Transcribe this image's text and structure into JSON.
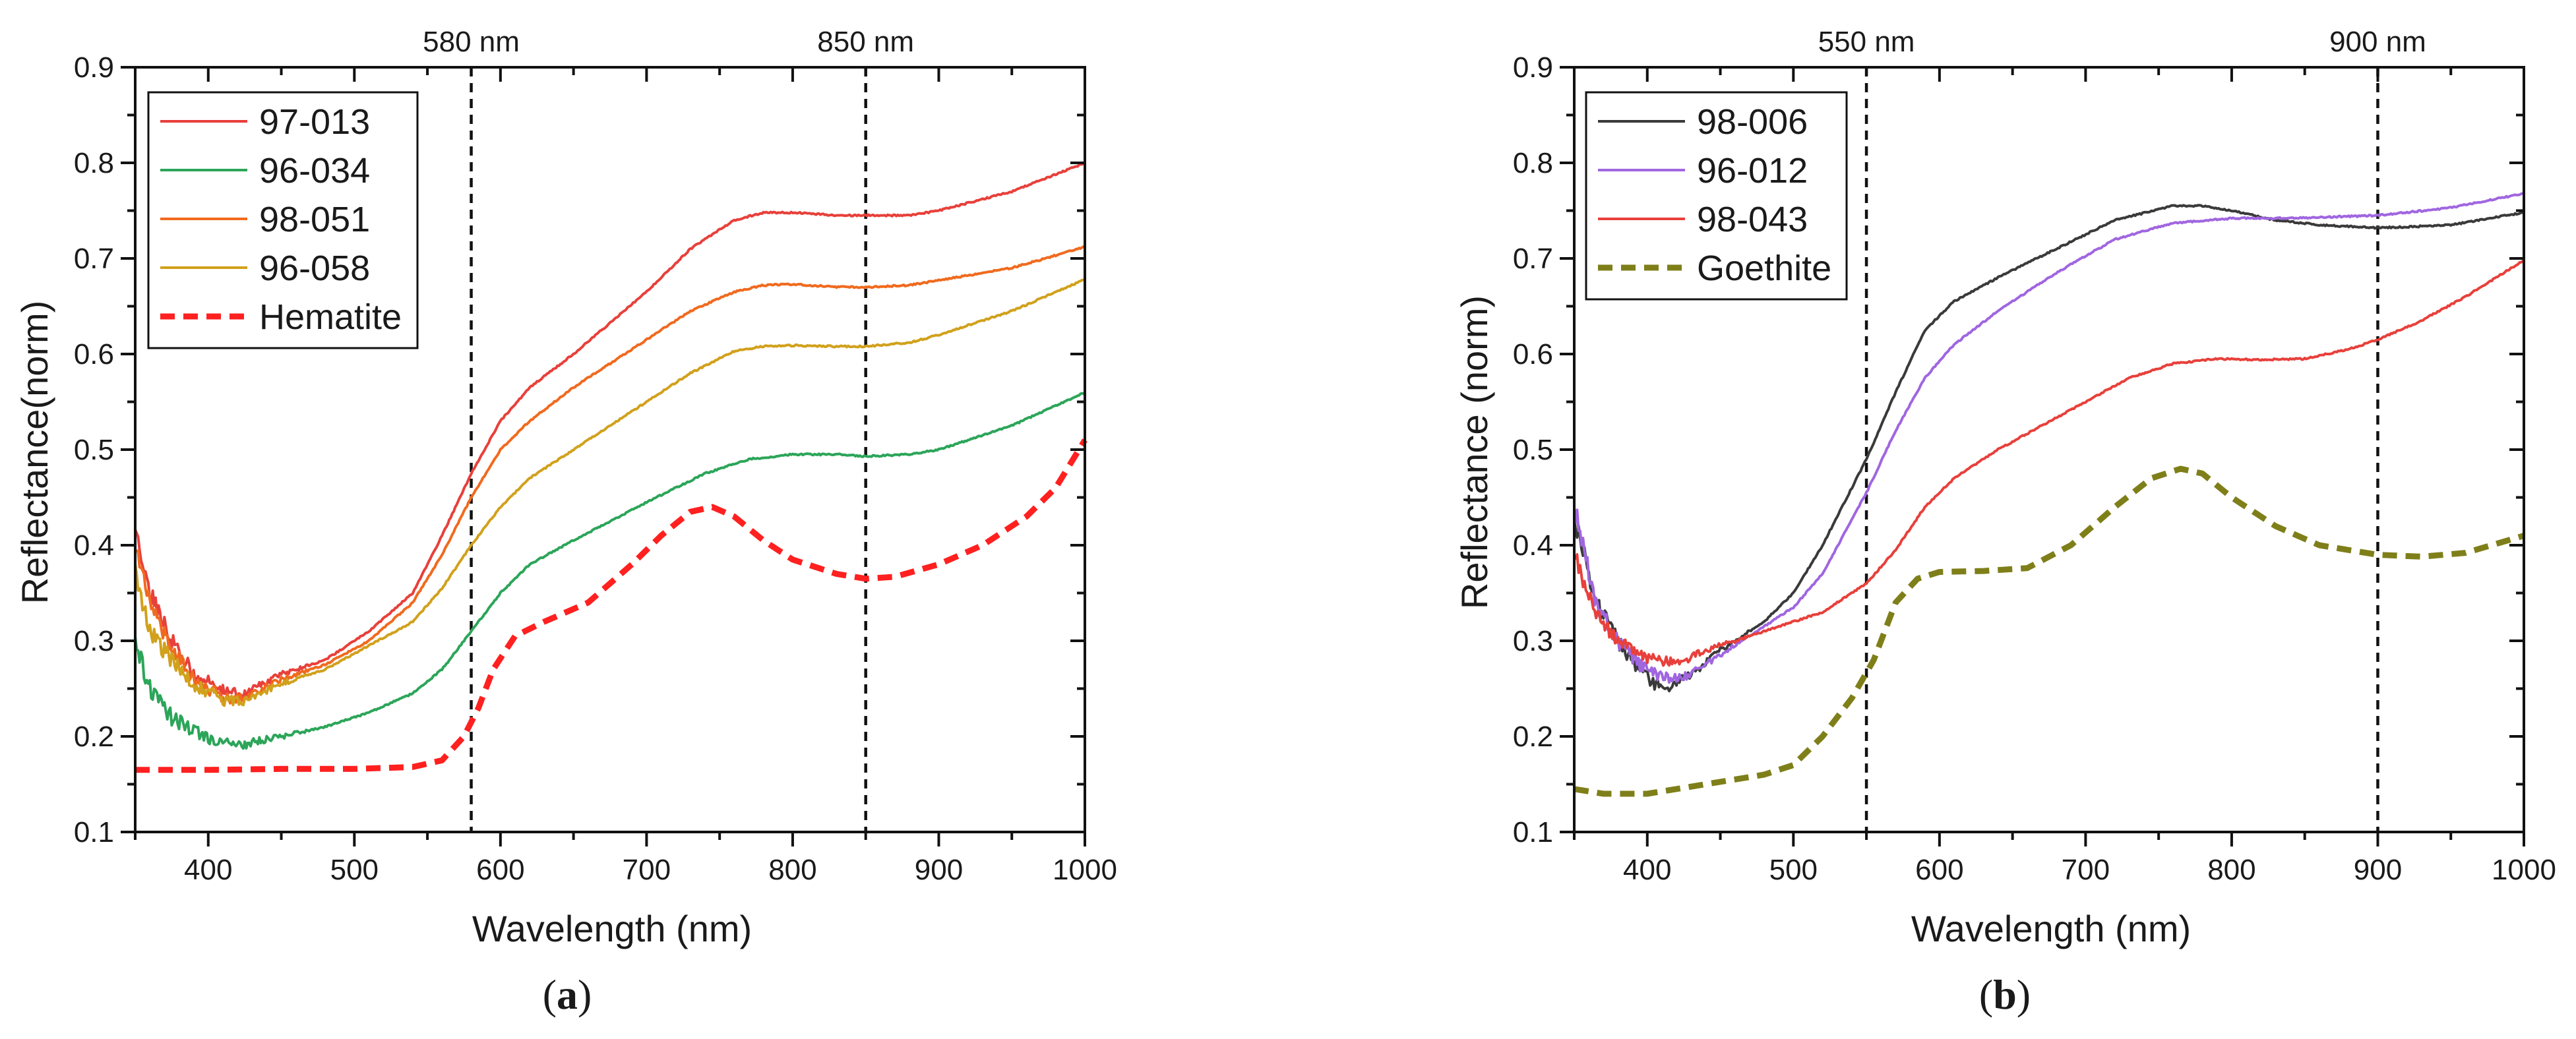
{
  "chart_data": [
    {
      "type": "line",
      "panel_label": "(a)",
      "panel_letter": "a",
      "xlabel": "Wavelength (nm)",
      "ylabel": "Reflectance(norm)",
      "xlim": [
        350,
        1000
      ],
      "ylim": [
        0.1,
        0.9
      ],
      "xticks": [
        400,
        500,
        600,
        700,
        800,
        900,
        1000
      ],
      "yticks": [
        0.1,
        0.2,
        0.3,
        0.4,
        0.5,
        0.6,
        0.7,
        0.8,
        0.9
      ],
      "legend_position": "top-left",
      "reference_lines": [
        {
          "x": 580,
          "label": "580 nm"
        },
        {
          "x": 850,
          "label": "850 nm"
        }
      ],
      "series": [
        {
          "name": "97-013",
          "color": "#e8403b",
          "style": "solid",
          "noisy": true,
          "x": [
            350,
            360,
            375,
            390,
            410,
            425,
            450,
            480,
            510,
            540,
            560,
            580,
            600,
            620,
            650,
            700,
            730,
            760,
            780,
            800,
            830,
            850,
            880,
            900,
            950,
            1000
          ],
          "y": [
            0.42,
            0.35,
            0.3,
            0.265,
            0.248,
            0.245,
            0.265,
            0.28,
            0.31,
            0.35,
            0.41,
            0.475,
            0.53,
            0.565,
            0.6,
            0.665,
            0.71,
            0.74,
            0.748,
            0.748,
            0.745,
            0.745,
            0.745,
            0.75,
            0.77,
            0.8
          ]
        },
        {
          "name": "96-034",
          "color": "#2ca559",
          "style": "solid",
          "noisy": true,
          "x": [
            350,
            360,
            375,
            390,
            405,
            420,
            435,
            450,
            480,
            510,
            540,
            560,
            580,
            600,
            620,
            650,
            700,
            740,
            770,
            800,
            830,
            850,
            880,
            900,
            950,
            1000
          ],
          "y": [
            0.3,
            0.25,
            0.22,
            0.205,
            0.195,
            0.19,
            0.195,
            0.2,
            0.21,
            0.225,
            0.245,
            0.27,
            0.31,
            0.35,
            0.38,
            0.405,
            0.445,
            0.475,
            0.49,
            0.495,
            0.495,
            0.493,
            0.495,
            0.5,
            0.525,
            0.56
          ]
        },
        {
          "name": "98-051",
          "color": "#f06a1e",
          "style": "solid",
          "noisy": true,
          "x": [
            350,
            360,
            375,
            390,
            410,
            425,
            450,
            480,
            510,
            540,
            560,
            580,
            600,
            620,
            650,
            700,
            730,
            760,
            780,
            800,
            830,
            850,
            880,
            900,
            950,
            1000
          ],
          "y": [
            0.4,
            0.34,
            0.29,
            0.26,
            0.24,
            0.24,
            0.26,
            0.275,
            0.3,
            0.34,
            0.39,
            0.45,
            0.5,
            0.53,
            0.565,
            0.615,
            0.645,
            0.665,
            0.672,
            0.673,
            0.67,
            0.67,
            0.672,
            0.677,
            0.69,
            0.712
          ]
        },
        {
          "name": "96-058",
          "color": "#d1a11c",
          "style": "solid",
          "noisy": true,
          "x": [
            350,
            360,
            375,
            390,
            410,
            425,
            450,
            480,
            510,
            540,
            560,
            580,
            600,
            620,
            650,
            700,
            730,
            760,
            780,
            800,
            830,
            850,
            880,
            900,
            950,
            1000
          ],
          "y": [
            0.37,
            0.31,
            0.28,
            0.255,
            0.238,
            0.237,
            0.255,
            0.27,
            0.295,
            0.32,
            0.355,
            0.4,
            0.44,
            0.47,
            0.5,
            0.55,
            0.58,
            0.603,
            0.608,
            0.609,
            0.608,
            0.608,
            0.612,
            0.62,
            0.645,
            0.678
          ]
        },
        {
          "name": "Hematite",
          "color": "#ff2020",
          "style": "dashed",
          "noisy": false,
          "x": [
            350,
            400,
            450,
            500,
            540,
            560,
            575,
            585,
            595,
            610,
            630,
            660,
            690,
            710,
            730,
            745,
            760,
            780,
            800,
            830,
            850,
            870,
            900,
            930,
            960,
            980,
            1000
          ],
          "y": [
            0.165,
            0.165,
            0.166,
            0.166,
            0.168,
            0.175,
            0.2,
            0.23,
            0.27,
            0.305,
            0.32,
            0.34,
            0.38,
            0.41,
            0.435,
            0.44,
            0.43,
            0.405,
            0.385,
            0.37,
            0.365,
            0.367,
            0.38,
            0.4,
            0.43,
            0.46,
            0.51
          ]
        }
      ]
    },
    {
      "type": "line",
      "panel_label": "(b)",
      "panel_letter": "b",
      "xlabel": "Wavelength (nm)",
      "ylabel": "Reflectance (norm)",
      "xlim": [
        350,
        1000
      ],
      "ylim": [
        0.1,
        0.9
      ],
      "xticks": [
        400,
        500,
        600,
        700,
        800,
        900,
        1000
      ],
      "yticks": [
        0.1,
        0.2,
        0.3,
        0.4,
        0.5,
        0.6,
        0.7,
        0.8,
        0.9
      ],
      "legend_position": "top-left",
      "reference_lines": [
        {
          "x": 550,
          "label": "550 nm"
        },
        {
          "x": 900,
          "label": "900 nm"
        }
      ],
      "series": [
        {
          "name": "98-006",
          "color": "#3a3a3a",
          "style": "solid",
          "noisy": true,
          "x": [
            350,
            365,
            380,
            395,
            405,
            415,
            430,
            450,
            480,
            500,
            520,
            550,
            570,
            590,
            610,
            640,
            680,
            720,
            760,
            780,
            800,
            830,
            860,
            900,
            920,
            950,
            1000
          ],
          "y": [
            0.43,
            0.34,
            0.3,
            0.27,
            0.255,
            0.252,
            0.265,
            0.29,
            0.32,
            0.35,
            0.4,
            0.49,
            0.56,
            0.625,
            0.655,
            0.68,
            0.71,
            0.74,
            0.755,
            0.755,
            0.75,
            0.74,
            0.735,
            0.732,
            0.733,
            0.735,
            0.748
          ]
        },
        {
          "name": "96-012",
          "color": "#a066e0",
          "style": "solid",
          "noisy": true,
          "x": [
            350,
            365,
            380,
            395,
            410,
            425,
            440,
            460,
            480,
            500,
            520,
            550,
            570,
            590,
            610,
            640,
            680,
            720,
            760,
            800,
            830,
            860,
            900,
            950,
            1000
          ],
          "y": [
            0.44,
            0.34,
            0.3,
            0.275,
            0.262,
            0.262,
            0.275,
            0.295,
            0.315,
            0.335,
            0.37,
            0.455,
            0.52,
            0.575,
            0.61,
            0.645,
            0.685,
            0.72,
            0.737,
            0.742,
            0.742,
            0.743,
            0.745,
            0.753,
            0.768
          ]
        },
        {
          "name": "98-043",
          "color": "#e8403b",
          "style": "solid",
          "noisy": true,
          "x": [
            350,
            365,
            380,
            395,
            410,
            425,
            440,
            460,
            480,
            500,
            520,
            550,
            570,
            590,
            610,
            640,
            670,
            700,
            730,
            760,
            790,
            820,
            850,
            880,
            900,
            930,
            960,
            1000
          ],
          "y": [
            0.39,
            0.33,
            0.3,
            0.285,
            0.278,
            0.28,
            0.29,
            0.3,
            0.31,
            0.32,
            0.33,
            0.36,
            0.395,
            0.44,
            0.47,
            0.5,
            0.525,
            0.55,
            0.575,
            0.59,
            0.595,
            0.594,
            0.595,
            0.605,
            0.615,
            0.635,
            0.66,
            0.698
          ]
        },
        {
          "name": "Goethite",
          "color": "#7f7f1a",
          "style": "dashed",
          "noisy": false,
          "x": [
            350,
            370,
            400,
            420,
            440,
            460,
            480,
            500,
            520,
            540,
            555,
            570,
            585,
            600,
            630,
            660,
            690,
            720,
            745,
            765,
            780,
            800,
            830,
            860,
            900,
            930,
            960,
            1000
          ],
          "y": [
            0.145,
            0.14,
            0.14,
            0.145,
            0.15,
            0.155,
            0.16,
            0.17,
            0.2,
            0.24,
            0.28,
            0.34,
            0.365,
            0.372,
            0.373,
            0.376,
            0.4,
            0.44,
            0.47,
            0.48,
            0.475,
            0.45,
            0.42,
            0.4,
            0.39,
            0.388,
            0.392,
            0.41
          ]
        }
      ]
    }
  ]
}
